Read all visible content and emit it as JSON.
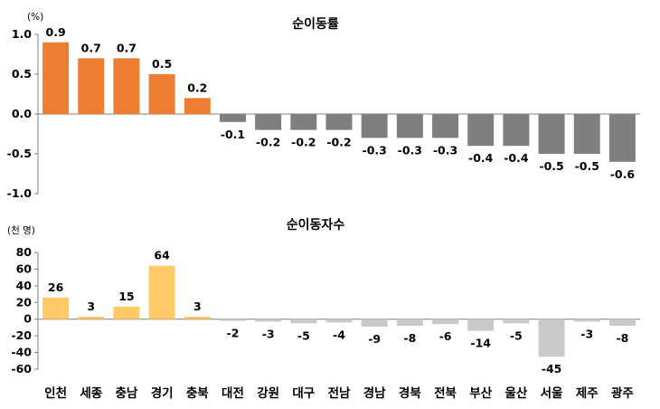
{
  "chart_data": [
    {
      "type": "bar",
      "title": "순이동률",
      "unit_label": "(%)",
      "categories": [
        "인천",
        "세종",
        "충남",
        "경기",
        "충북",
        "대전",
        "강원",
        "대구",
        "전남",
        "경남",
        "경북",
        "전북",
        "부산",
        "울산",
        "서울",
        "제주",
        "광주"
      ],
      "values": [
        0.9,
        0.7,
        0.7,
        0.5,
        0.2,
        -0.1,
        -0.2,
        -0.2,
        -0.2,
        -0.3,
        -0.3,
        -0.3,
        -0.4,
        -0.4,
        -0.5,
        -0.5,
        -0.6
      ],
      "data_labels": [
        "0.9",
        "0.7",
        "0.7",
        "0.5",
        "0.2",
        "-0.1",
        "-0.2",
        "-0.2",
        "-0.2",
        "-0.3",
        "-0.3",
        "-0.3",
        "-0.4",
        "-0.4",
        "-0.5",
        "-0.5",
        "-0.6"
      ],
      "ylim": [
        -1.0,
        1.0
      ],
      "yticks": [
        1.0,
        0.5,
        0.0,
        -0.5,
        -1.0
      ],
      "ytick_labels": [
        "1.0",
        "0.5",
        "0.0",
        "-0.5",
        "-1.0"
      ],
      "colors": {
        "positive": "#ED7D31",
        "negative": "#7F7F7F"
      },
      "grid": false,
      "legend": "none"
    },
    {
      "type": "bar",
      "title": "순이동자수",
      "unit_label": "(천 명)",
      "categories": [
        "인천",
        "세종",
        "충남",
        "경기",
        "충북",
        "대전",
        "강원",
        "대구",
        "전남",
        "경남",
        "경북",
        "전북",
        "부산",
        "울산",
        "서울",
        "제주",
        "광주"
      ],
      "values": [
        26,
        3,
        15,
        64,
        3,
        -2,
        -3,
        -5,
        -4,
        -9,
        -8,
        -6,
        -14,
        -5,
        -45,
        -3,
        -8
      ],
      "data_labels": [
        "26",
        "3",
        "15",
        "64",
        "3",
        "-2",
        "-3",
        "-5",
        "-4",
        "-9",
        "-8",
        "-6",
        "-14",
        "-5",
        "-45",
        "-3",
        "-8"
      ],
      "ylim": [
        -60,
        80
      ],
      "yticks": [
        80,
        60,
        40,
        20,
        0,
        -20,
        -40,
        -60
      ],
      "ytick_labels": [
        "80",
        "60",
        "40",
        "20",
        "0",
        "-20",
        "-40",
        "-60"
      ],
      "colors": {
        "positive": "#FFC966",
        "negative": "#C9C9C9"
      },
      "grid": false,
      "legend": "none"
    }
  ]
}
